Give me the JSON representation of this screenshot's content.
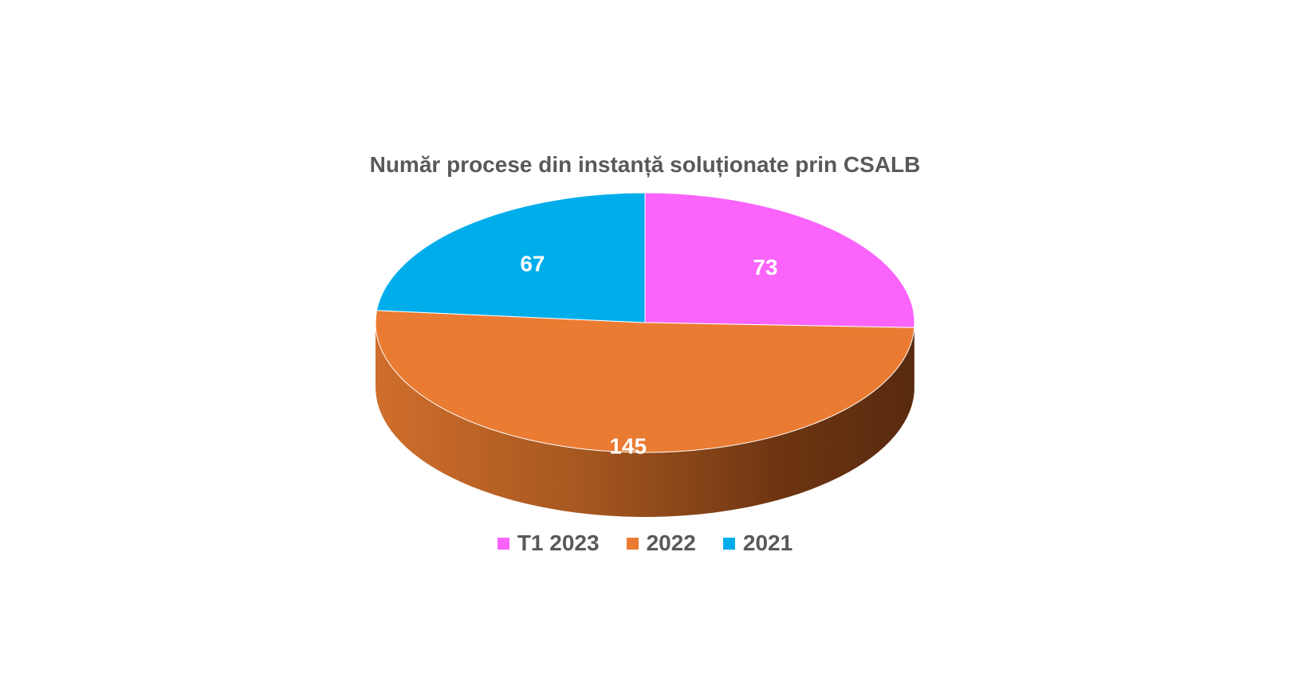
{
  "chart_data": {
    "type": "pie",
    "title": "Număr procese din instanță soluționate prin CSALB",
    "categories": [
      "T1 2023",
      "2022",
      "2021"
    ],
    "values": [
      73,
      145,
      67
    ],
    "colors": [
      "#FA64FA",
      "#EA7B32",
      "#00ADEB"
    ],
    "side_colors": [
      "#B842B8",
      "#C0652A",
      "#0089B8"
    ],
    "data_labels": [
      "73",
      "145",
      "67"
    ],
    "legend_position": "bottom",
    "style": "3d-pie"
  }
}
